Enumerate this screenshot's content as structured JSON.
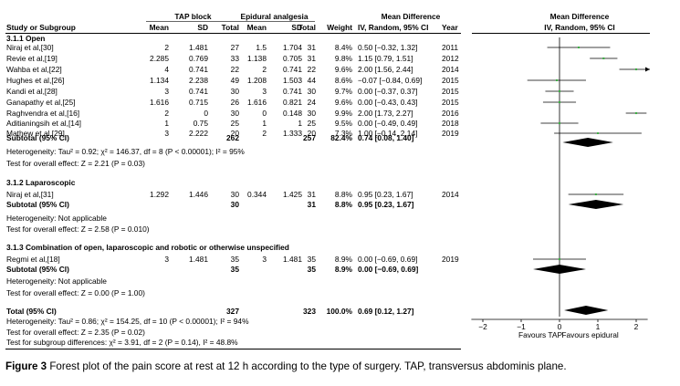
{
  "headers": {
    "study": "Study or Subgroup",
    "group1": "TAP block",
    "group2": "Epidural analgesia",
    "mean": "Mean",
    "sd": "SD",
    "total": "Total",
    "weight": "Weight",
    "md_title": "Mean Difference",
    "md_sub": "IV, Random, 95% CI",
    "year": "Year",
    "plot_title": "Mean Difference",
    "plot_sub": "IV, Random, 95% CI"
  },
  "subgroups": [
    {
      "title": "3.1.1 Open",
      "studies": [
        {
          "name": "Niraj et al,[30]",
          "m1": "2",
          "sd1": "1.481",
          "n1": "27",
          "m2": "1.5",
          "sd2": "1.704",
          "n2": "31",
          "weight": "8.4%",
          "ci": "0.50 [−0.32, 1.32]",
          "year": "2011"
        },
        {
          "name": "Revie et al,[19]",
          "m1": "2.285",
          "sd1": "0.769",
          "n1": "33",
          "m2": "1.138",
          "sd2": "0.705",
          "n2": "31",
          "weight": "9.8%",
          "ci": "1.15 [0.79, 1.51]",
          "year": "2012"
        },
        {
          "name": "Wahba et al,[22]",
          "m1": "4",
          "sd1": "0.741",
          "n1": "22",
          "m2": "2",
          "sd2": "0.741",
          "n2": "22",
          "weight": "9.6%",
          "ci": "2.00 [1.56, 2.44]",
          "year": "2014"
        },
        {
          "name": "Hughes et al,[26]",
          "m1": "1.134",
          "sd1": "2.238",
          "n1": "49",
          "m2": "1.208",
          "sd2": "1.503",
          "n2": "44",
          "weight": "8.6%",
          "ci": "−0.07 [−0.84, 0.69]",
          "year": "2015"
        },
        {
          "name": "Kandi et al,[28]",
          "m1": "3",
          "sd1": "0.741",
          "n1": "30",
          "m2": "3",
          "sd2": "0.741",
          "n2": "30",
          "weight": "9.7%",
          "ci": "0.00 [−0.37, 0.37]",
          "year": "2015"
        },
        {
          "name": "Ganapathy et al,[25]",
          "m1": "1.616",
          "sd1": "0.715",
          "n1": "26",
          "m2": "1.616",
          "sd2": "0.821",
          "n2": "24",
          "weight": "9.6%",
          "ci": "0.00 [−0.43, 0.43]",
          "year": "2015"
        },
        {
          "name": "Raghvendra et al,[16]",
          "m1": "2",
          "sd1": "0",
          "n1": "30",
          "m2": "0",
          "sd2": "0.148",
          "n2": "30",
          "weight": "9.9%",
          "ci": "2.00 [1.73, 2.27]",
          "year": "2016"
        },
        {
          "name": "Aditianingsih et al,[14]",
          "m1": "1",
          "sd1": "0.75",
          "n1": "25",
          "m2": "1",
          "sd2": "1",
          "n2": "25",
          "weight": "9.5%",
          "ci": "0.00 [−0.49, 0.49]",
          "year": "2018"
        },
        {
          "name": "Mathew et al,[29]",
          "m1": "3",
          "sd1": "2.222",
          "n1": "20",
          "m2": "2",
          "sd2": "1.333",
          "n2": "20",
          "weight": "7.3%",
          "ci": "1.00 [−0.14, 2.14]",
          "year": "2019"
        }
      ],
      "subtotal": {
        "label": "Subtotal (95% CI)",
        "n1": "262",
        "n2": "257",
        "weight": "82.4%",
        "ci": "0.74 [0.08, 1.40]"
      },
      "heterogeneity": "Heterogeneity: Tau² = 0.92; χ² = 146.37, df = 8 (P < 0.00001); I² = 95%",
      "overall": "Test for overall effect: Z = 2.21 (P = 0.03)"
    },
    {
      "title": "3.1.2 Laparoscopic",
      "studies": [
        {
          "name": "Niraj et al,[31]",
          "m1": "1.292",
          "sd1": "1.446",
          "n1": "30",
          "m2": "0.344",
          "sd2": "1.425",
          "n2": "31",
          "weight": "8.8%",
          "ci": "0.95 [0.23, 1.67]",
          "year": "2014"
        }
      ],
      "subtotal": {
        "label": "Subtotal (95% CI)",
        "n1": "30",
        "n2": "31",
        "weight": "8.8%",
        "ci": "0.95 [0.23, 1.67]"
      },
      "heterogeneity": "Heterogeneity: Not applicable",
      "overall": "Test for overall effect: Z = 2.58 (P = 0.010)"
    },
    {
      "title": "3.1.3 Combination of open, laparoscopic and robotic or otherwise unspecified",
      "studies": [
        {
          "name": "Regmi et al,[18]",
          "m1": "3",
          "sd1": "1.481",
          "n1": "35",
          "m2": "3",
          "sd2": "1.481",
          "n2": "35",
          "weight": "8.9%",
          "ci": "0.00 [−0.69, 0.69]",
          "year": "2019"
        }
      ],
      "subtotal": {
        "label": "Subtotal (95% CI)",
        "n1": "35",
        "n2": "35",
        "weight": "8.9%",
        "ci": "0.00 [−0.69, 0.69]"
      },
      "heterogeneity": "Heterogeneity: Not applicable",
      "overall": "Test for overall effect: Z = 0.00 (P = 1.00)"
    }
  ],
  "total": {
    "label": "Total (95% CI)",
    "n1": "327",
    "n2": "323",
    "weight": "100.0%",
    "ci": "0.69 [0.12, 1.27]",
    "heterogeneity": "Heterogeneity: Tau² = 0.86; χ² = 154.25, df = 10 (P < 0.00001); I² = 94%",
    "overall": "Test for overall effect: Z = 2.35 (P = 0.02)",
    "subgroup": "Test for subgroup differences: χ² = 3.91, df = 2 (P = 0.14), I² = 48.8%"
  },
  "chart_data": {
    "type": "forest",
    "title": "Mean Difference",
    "subtitle": "IV, Random, 95% CI",
    "xlim": [
      -2,
      2
    ],
    "ticks": [
      -2,
      -1,
      0,
      1,
      2
    ],
    "tick_labels": [
      "−2",
      "−1",
      "0",
      "1",
      "2"
    ],
    "favours_left": "Favours TAP",
    "favours_right": "Favours epidural",
    "studies": [
      {
        "name": "Niraj et al,[30]",
        "md": 0.5,
        "lo": -0.32,
        "hi": 1.32
      },
      {
        "name": "Revie et al,[19]",
        "md": 1.15,
        "lo": 0.79,
        "hi": 1.51
      },
      {
        "name": "Wahba et al,[22]",
        "md": 2.0,
        "lo": 1.56,
        "hi": 2.44
      },
      {
        "name": "Hughes et al,[26]",
        "md": -0.07,
        "lo": -0.84,
        "hi": 0.69
      },
      {
        "name": "Kandi et al,[28]",
        "md": 0.0,
        "lo": -0.37,
        "hi": 0.37
      },
      {
        "name": "Ganapathy et al,[25]",
        "md": 0.0,
        "lo": -0.43,
        "hi": 0.43
      },
      {
        "name": "Raghvendra et al,[16]",
        "md": 2.0,
        "lo": 1.73,
        "hi": 2.27
      },
      {
        "name": "Aditianingsih et al,[14]",
        "md": 0.0,
        "lo": -0.49,
        "hi": 0.49
      },
      {
        "name": "Mathew et al,[29]",
        "md": 1.0,
        "lo": -0.14,
        "hi": 2.14
      },
      {
        "name": "Niraj et al,[31]",
        "md": 0.95,
        "lo": 0.23,
        "hi": 1.67
      },
      {
        "name": "Regmi et al,[18]",
        "md": 0.0,
        "lo": -0.69,
        "hi": 0.69
      }
    ],
    "summaries": [
      {
        "name": "Subtotal Open",
        "md": 0.74,
        "lo": 0.08,
        "hi": 1.4
      },
      {
        "name": "Subtotal Laparoscopic",
        "md": 0.95,
        "lo": 0.23,
        "hi": 1.67
      },
      {
        "name": "Subtotal Combination",
        "md": 0.0,
        "lo": -0.69,
        "hi": 0.69
      },
      {
        "name": "Total",
        "md": 0.69,
        "lo": 0.12,
        "hi": 1.27
      }
    ]
  },
  "caption": {
    "label": "Figure 3",
    "text": "Forest plot of the pain score at rest at 12  h according to the type of surgery. TAP, transversus abdominis plane."
  }
}
